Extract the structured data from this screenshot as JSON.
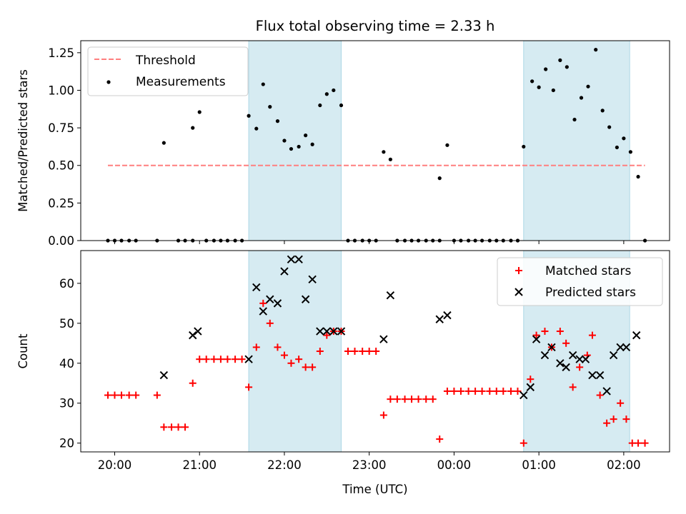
{
  "title": "Flux total observing time = 2.33 h",
  "colors": {
    "threshold": "#ff7f7f",
    "measurement": "#000000",
    "matched": "#ff0000",
    "predicted": "#000000",
    "shade": "#add8e6"
  },
  "chart_data": [
    {
      "type": "scatter",
      "panel": "top",
      "ylabel": "Matched/Predicted stars",
      "xlim": [
        19.6,
        26.54
      ],
      "ylim": [
        0,
        1.33
      ],
      "yticks": [
        0,
        0.25,
        0.5,
        0.75,
        1.0,
        1.25
      ],
      "ytick_labels": [
        "0.00",
        "0.25",
        "0.50",
        "0.75",
        "1.00",
        "1.25"
      ],
      "legend": {
        "position": "top-left",
        "entries": [
          "Threshold",
          "Measurements"
        ]
      },
      "shaded_intervals": [
        [
          21.58,
          22.67
        ],
        [
          24.82,
          26.07
        ]
      ],
      "threshold": {
        "name": "Threshold",
        "value": 0.5,
        "x_start": 19.92,
        "x_end": 26.25
      },
      "series": [
        {
          "name": "Measurements",
          "x": [
            19.92,
            20.0,
            20.08,
            20.17,
            20.25,
            20.5,
            20.58,
            20.75,
            20.83,
            20.92,
            20.92,
            21.0,
            21.08,
            21.17,
            21.25,
            21.33,
            21.42,
            21.5,
            21.58,
            21.67,
            21.75,
            21.83,
            21.92,
            22.0,
            22.08,
            22.17,
            22.25,
            22.33,
            22.42,
            22.5,
            22.58,
            22.67,
            22.75,
            22.83,
            22.92,
            23.0,
            23.08,
            23.17,
            23.25,
            23.33,
            23.42,
            23.5,
            23.58,
            23.67,
            23.75,
            23.83,
            23.83,
            23.92,
            24.0,
            24.08,
            24.17,
            24.25,
            24.33,
            24.42,
            24.5,
            24.58,
            24.67,
            24.75,
            24.82,
            24.92,
            25.0,
            25.08,
            25.17,
            25.25,
            25.33,
            25.42,
            25.5,
            25.58,
            25.67,
            25.75,
            25.83,
            25.92,
            26.0,
            26.08,
            26.17,
            26.25
          ],
          "y": [
            0,
            0,
            0,
            0,
            0,
            0,
            0.65,
            0,
            0,
            0,
            0.75,
            0.855,
            0,
            0,
            0,
            0,
            0,
            0,
            0.83,
            0.745,
            1.04,
            0.89,
            0.795,
            0.665,
            0.61,
            0.625,
            0.7,
            0.64,
            0.9,
            0.975,
            1.0,
            0.9,
            0,
            0,
            0,
            0,
            0,
            0.59,
            0.54,
            0,
            0,
            0,
            0,
            0,
            0,
            0,
            0.415,
            0.635,
            0,
            0,
            0,
            0,
            0,
            0,
            0,
            0,
            0,
            0,
            0.625,
            1.06,
            1.02,
            1.14,
            1.0,
            1.2,
            1.155,
            0.805,
            0.95,
            1.025,
            1.27,
            0.865,
            0.755,
            0.62,
            0.68,
            0.59,
            0.425,
            0
          ]
        }
      ]
    },
    {
      "type": "scatter",
      "panel": "bottom",
      "xlabel": "Time (UTC)",
      "ylabel": "Count",
      "xlim": [
        19.6,
        26.54
      ],
      "ylim": [
        17.8,
        68.2
      ],
      "xticks": [
        20,
        21,
        22,
        23,
        24,
        25,
        26
      ],
      "xtick_labels": [
        "20:00",
        "21:00",
        "22:00",
        "23:00",
        "00:00",
        "01:00",
        "02:00"
      ],
      "yticks": [
        20,
        30,
        40,
        50,
        60
      ],
      "ytick_labels": [
        "20",
        "30",
        "40",
        "50",
        "60"
      ],
      "legend": {
        "position": "top-right",
        "entries": [
          "Matched stars",
          "Predicted stars"
        ]
      },
      "shaded_intervals": [
        [
          21.58,
          22.67
        ],
        [
          24.82,
          26.07
        ]
      ],
      "series": [
        {
          "name": "Matched stars",
          "marker": "+",
          "x": [
            19.92,
            20.0,
            20.08,
            20.17,
            20.25,
            20.5,
            20.58,
            20.67,
            20.75,
            20.83,
            20.92,
            21.0,
            21.08,
            21.17,
            21.25,
            21.33,
            21.42,
            21.5,
            21.58,
            21.67,
            21.75,
            21.83,
            21.92,
            22.0,
            22.08,
            22.17,
            22.25,
            22.33,
            22.42,
            22.5,
            22.58,
            22.67,
            22.75,
            22.83,
            22.92,
            23.0,
            23.08,
            23.17,
            23.25,
            23.33,
            23.42,
            23.5,
            23.58,
            23.67,
            23.75,
            23.83,
            23.92,
            24.0,
            24.08,
            24.17,
            24.25,
            24.33,
            24.42,
            24.5,
            24.58,
            24.67,
            24.75,
            24.82,
            24.9,
            24.97,
            25.07,
            25.15,
            25.25,
            25.32,
            25.4,
            25.48,
            25.57,
            25.63,
            25.72,
            25.8,
            25.88,
            25.96,
            26.03,
            26.1,
            26.17,
            26.25
          ],
          "y": [
            32,
            32,
            32,
            32,
            32,
            32,
            24,
            24,
            24,
            24,
            35,
            41,
            41,
            41,
            41,
            41,
            41,
            41,
            34,
            44,
            55,
            50,
            44,
            42,
            40,
            41,
            39,
            39,
            43,
            47,
            48,
            48,
            43,
            43,
            43,
            43,
            43,
            27,
            31,
            31,
            31,
            31,
            31,
            31,
            31,
            21,
            33,
            33,
            33,
            33,
            33,
            33,
            33,
            33,
            33,
            33,
            33,
            20,
            36,
            47,
            48,
            44,
            48,
            45,
            34,
            39,
            42,
            47,
            32,
            25,
            26,
            30,
            26,
            20,
            20,
            20
          ]
        },
        {
          "name": "Predicted stars",
          "marker": "x",
          "x": [
            20.58,
            20.92,
            20.98,
            21.58,
            21.67,
            21.75,
            21.83,
            21.92,
            22.0,
            22.08,
            22.17,
            22.25,
            22.33,
            22.42,
            22.5,
            22.58,
            22.67,
            23.17,
            23.25,
            23.83,
            23.92,
            24.82,
            24.9,
            24.97,
            25.07,
            25.15,
            25.25,
            25.32,
            25.4,
            25.48,
            25.55,
            25.63,
            25.72,
            25.8,
            25.88,
            25.96,
            26.03,
            26.15
          ],
          "y": [
            37,
            47,
            48,
            41,
            59,
            53,
            56,
            55,
            63,
            66,
            66,
            56,
            61,
            48,
            48,
            48,
            48,
            46,
            57,
            51,
            52,
            32,
            34,
            46,
            42,
            44,
            40,
            39,
            42,
            41,
            41,
            37,
            37,
            33,
            42,
            44,
            44,
            47
          ]
        }
      ]
    }
  ]
}
